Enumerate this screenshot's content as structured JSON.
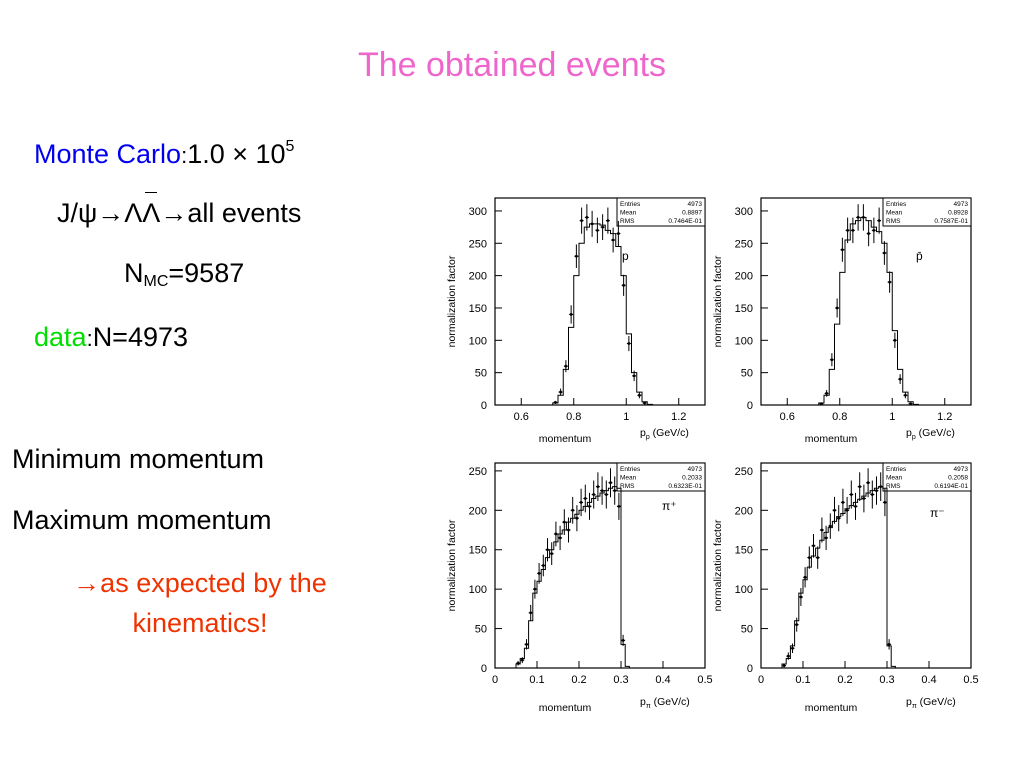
{
  "title": "The obtained events",
  "left_text": {
    "mc_label": "Monte Carlo",
    "mc_colon": ":",
    "mc_value": "1.0 × 10",
    "mc_exp": "5",
    "decay_prefix": "J/ψ→Λ",
    "decay_bar": "Λ",
    "decay_suffix": "→all events",
    "nmc_prefix": "N",
    "nmc_sub": "MC",
    "nmc_value": "=9587",
    "data_label": "data",
    "data_colon": ":",
    "data_value": "N=4973",
    "min_momentum": "Minimum momentum",
    "max_momentum": "Maximum momentum",
    "conclusion_line1": "→as expected by the",
    "conclusion_line2": "kinematics!"
  },
  "colors": {
    "title": "#ee66cc",
    "monte_carlo": "#0000ee",
    "data": "#00dd00",
    "conclusion": "#ee3300"
  },
  "chart_data": [
    {
      "type": "histogram",
      "particle": "p",
      "ylabel": "normalization factor",
      "xlabel": "momentum",
      "xlabel_right": "p",
      "xlabel_right_sub": "p",
      "xlabel_unit": "(GeV/c)",
      "xlim": [
        0.5,
        1.3
      ],
      "ylim": [
        0,
        320
      ],
      "xticks": [
        0.6,
        0.8,
        1,
        1.2
      ],
      "xtick_labels": [
        "0.6",
        "0.8",
        "1",
        "1.2"
      ],
      "yticks": [
        0,
        50,
        100,
        150,
        200,
        250,
        300
      ],
      "stats": {
        "Entries": "4973",
        "Mean": "0.8897",
        "RMS": "0.7464E-01"
      },
      "bins": {
        "x": [
          0.73,
          0.75,
          0.77,
          0.79,
          0.81,
          0.83,
          0.85,
          0.87,
          0.89,
          0.91,
          0.93,
          0.95,
          0.97,
          0.99,
          1.01,
          1.03,
          1.05,
          1.07,
          1.09
        ],
        "mc": [
          3,
          15,
          55,
          120,
          200,
          250,
          275,
          280,
          280,
          278,
          270,
          265,
          245,
          200,
          110,
          50,
          20,
          5,
          1
        ],
        "data": [
          4,
          20,
          60,
          140,
          230,
          285,
          290,
          280,
          270,
          275,
          285,
          255,
          265,
          185,
          95,
          45,
          15,
          3,
          0
        ]
      }
    },
    {
      "type": "histogram",
      "particle": "p̄",
      "ylabel": "normalization factor",
      "xlabel": "momentum",
      "xlabel_right": "p",
      "xlabel_right_sub": "p",
      "xlabel_unit": "(GeV/c)",
      "xlim": [
        0.5,
        1.3
      ],
      "ylim": [
        0,
        320
      ],
      "xticks": [
        0.6,
        0.8,
        1,
        1.2
      ],
      "xtick_labels": [
        "0.6",
        "0.8",
        "1",
        "1.2"
      ],
      "yticks": [
        0,
        50,
        100,
        150,
        200,
        250,
        300
      ],
      "stats": {
        "Entries": "4973",
        "Mean": "0.8928",
        "RMS": "0.7587E-01"
      },
      "bins": {
        "x": [
          0.73,
          0.75,
          0.77,
          0.79,
          0.81,
          0.83,
          0.85,
          0.87,
          0.89,
          0.91,
          0.93,
          0.95,
          0.97,
          0.99,
          1.01,
          1.03,
          1.05,
          1.07,
          1.09
        ],
        "mc": [
          3,
          15,
          55,
          125,
          205,
          255,
          280,
          285,
          290,
          285,
          275,
          268,
          250,
          205,
          115,
          55,
          20,
          5,
          1
        ],
        "data": [
          2,
          18,
          70,
          150,
          240,
          270,
          270,
          290,
          290,
          265,
          270,
          285,
          235,
          190,
          100,
          40,
          15,
          2,
          0
        ]
      }
    },
    {
      "type": "histogram",
      "particle": "π⁺",
      "ylabel": "normalization factor",
      "xlabel": "momentum",
      "xlabel_right": "p",
      "xlabel_right_sub": "π",
      "xlabel_unit": "(GeV/c)",
      "xlim": [
        0,
        0.5
      ],
      "ylim": [
        0,
        260
      ],
      "xticks": [
        0,
        0.1,
        0.2,
        0.3,
        0.4,
        0.5
      ],
      "xtick_labels": [
        "0",
        "0.1",
        "0.2",
        "0.3",
        "0.4",
        "0.5"
      ],
      "yticks": [
        0,
        50,
        100,
        150,
        200,
        250
      ],
      "stats": {
        "Entries": "4973",
        "Mean": "0.2033",
        "RMS": "0.6323E-01"
      },
      "bins": {
        "x": [
          0.055,
          0.065,
          0.075,
          0.085,
          0.095,
          0.105,
          0.115,
          0.125,
          0.135,
          0.145,
          0.155,
          0.165,
          0.175,
          0.185,
          0.195,
          0.205,
          0.215,
          0.225,
          0.235,
          0.245,
          0.255,
          0.265,
          0.275,
          0.285,
          0.295,
          0.305,
          0.315,
          0.325
        ],
        "mc": [
          5,
          12,
          25,
          60,
          95,
          110,
          125,
          140,
          150,
          160,
          170,
          175,
          185,
          190,
          195,
          200,
          205,
          210,
          215,
          218,
          222,
          225,
          228,
          230,
          228,
          30,
          2,
          0
        ],
        "data": [
          6,
          10,
          30,
          70,
          100,
          120,
          130,
          150,
          145,
          170,
          165,
          185,
          175,
          200,
          190,
          210,
          215,
          205,
          220,
          230,
          225,
          220,
          235,
          225,
          205,
          35,
          0,
          0
        ]
      }
    },
    {
      "type": "histogram",
      "particle": "π⁻",
      "ylabel": "normalization factor",
      "xlabel": "momentum",
      "xlabel_right": "p",
      "xlabel_right_sub": "π",
      "xlabel_unit": "(GeV/c)",
      "xlim": [
        0,
        0.5
      ],
      "ylim": [
        0,
        260
      ],
      "xticks": [
        0,
        0.1,
        0.2,
        0.3,
        0.4,
        0.5
      ],
      "xtick_labels": [
        "0",
        "0.1",
        "0.2",
        "0.3",
        "0.4",
        "0.5"
      ],
      "yticks": [
        0,
        50,
        100,
        150,
        200,
        250
      ],
      "stats": {
        "Entries": "4973",
        "Mean": "0.2058",
        "RMS": "0.6194E-01"
      },
      "bins": {
        "x": [
          0.055,
          0.065,
          0.075,
          0.085,
          0.095,
          0.105,
          0.115,
          0.125,
          0.135,
          0.145,
          0.155,
          0.165,
          0.175,
          0.185,
          0.195,
          0.205,
          0.215,
          0.225,
          0.235,
          0.245,
          0.255,
          0.265,
          0.275,
          0.285,
          0.295,
          0.305,
          0.315,
          0.325
        ],
        "mc": [
          5,
          12,
          28,
          60,
          95,
          112,
          128,
          142,
          152,
          162,
          172,
          178,
          186,
          192,
          196,
          202,
          206,
          210,
          214,
          218,
          222,
          225,
          228,
          230,
          228,
          28,
          2,
          0
        ],
        "data": [
          3,
          15,
          25,
          55,
          90,
          115,
          140,
          155,
          140,
          175,
          165,
          180,
          200,
          190,
          210,
          200,
          220,
          205,
          230,
          215,
          235,
          220,
          225,
          230,
          210,
          30,
          0,
          0
        ]
      }
    }
  ]
}
